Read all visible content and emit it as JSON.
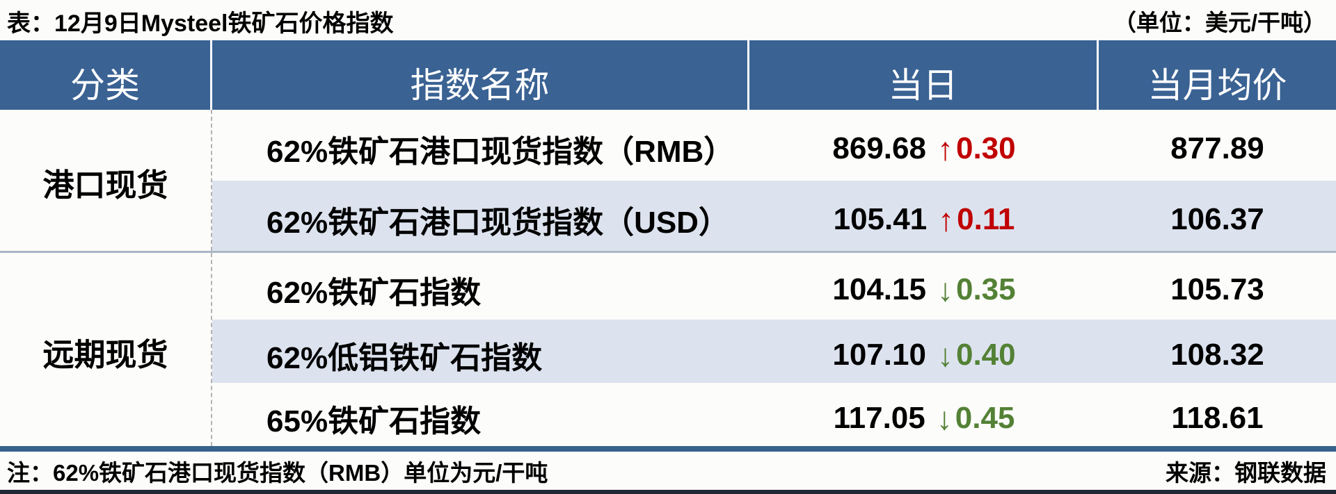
{
  "title": "表：12月9日Mysteel铁矿石价格指数",
  "unit_note": "（单位：美元/干吨）",
  "icons": {
    "up": "↑",
    "down": "↓"
  },
  "colors": {
    "header_bg": "#3a6293",
    "stripe_bg": "#dce3ee",
    "up_red": "#c00000",
    "down_green": "#538135",
    "divider": "#aab6c6",
    "bottom_bar_blue": "#35618c",
    "bottom_line_dark": "#202833"
  },
  "table": {
    "headers": [
      "分类",
      "指数名称",
      "当日",
      "当月均价"
    ],
    "groups": [
      {
        "category": "港口现货",
        "rows": [
          {
            "name": "62%铁矿石港口现货指数（RMB）",
            "value": "869.68",
            "direction": "up",
            "change": "0.30",
            "monthly_avg": "877.89"
          },
          {
            "name": "62%铁矿石港口现货指数（USD）",
            "value": "105.41",
            "direction": "up",
            "change": "0.11",
            "monthly_avg": "106.37"
          }
        ]
      },
      {
        "category": "远期现货",
        "rows": [
          {
            "name": "62%铁矿石指数",
            "value": "104.15",
            "direction": "down",
            "change": "0.35",
            "monthly_avg": "105.73"
          },
          {
            "name": "62%低铝铁矿石指数",
            "value": "107.10",
            "direction": "down",
            "change": "0.40",
            "monthly_avg": "108.32"
          },
          {
            "name": "65%铁矿石指数",
            "value": "117.05",
            "direction": "down",
            "change": "0.45",
            "monthly_avg": "118.61"
          }
        ]
      }
    ]
  },
  "footer": {
    "note": "注：62%铁矿石港口现货指数（RMB）单位为元/干吨",
    "source": "来源：钢联数据"
  }
}
